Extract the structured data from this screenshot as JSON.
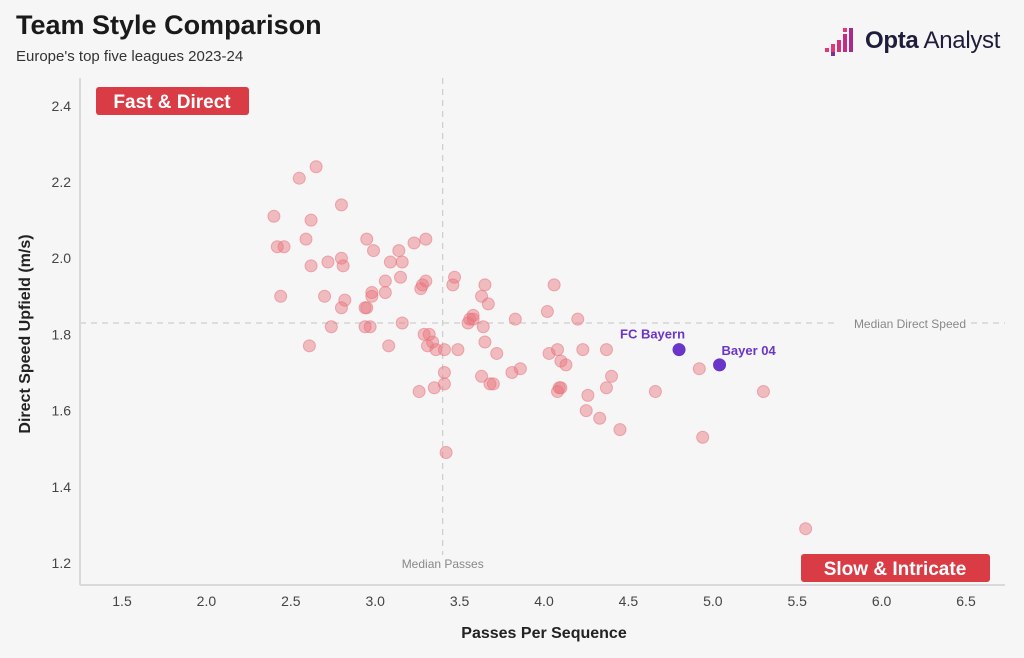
{
  "header": {
    "title": "Team Style Comparison",
    "subtitle": "Europe's top five leagues 2023-24"
  },
  "logo": {
    "icon": "opta-analyst-logo-icon",
    "brand": "Opta",
    "product": "Analyst"
  },
  "colors": {
    "points": "#e8737c",
    "highlight": "#6a35c9",
    "quadrant_badge": "#d93c45",
    "axis": "#d9d9d9",
    "median_line": "#c4c4c4",
    "text": "#222222"
  },
  "chart_data": {
    "type": "scatter",
    "title": "Team Style Comparison",
    "subtitle": "Europe's top five leagues 2023-24",
    "xlabel": "Passes Per Sequence",
    "ylabel": "Direct Speed Upfield (m/s)",
    "xlim": [
      1.3,
      6.6
    ],
    "ylim": [
      1.15,
      2.45
    ],
    "xticks": [
      1.5,
      2.0,
      2.5,
      3.0,
      3.5,
      4.0,
      4.5,
      5.0,
      5.5,
      6.0,
      6.5
    ],
    "yticks": [
      1.2,
      1.4,
      1.6,
      1.8,
      2.0,
      2.2,
      2.4
    ],
    "grid": false,
    "median_passes": 3.4,
    "median_speed": 1.83,
    "median_passes_label": "Median Passes",
    "median_speed_label": "Median Direct Speed",
    "quadrant_labels": {
      "top_left": "Fast & Direct",
      "bottom_right": "Slow & Intricate"
    },
    "highlighted": [
      {
        "label": "FC Bayern",
        "x": 4.8,
        "y": 1.76
      },
      {
        "label": "Bayer 04",
        "x": 5.04,
        "y": 1.72
      }
    ],
    "points": [
      [
        2.4,
        2.11
      ],
      [
        2.55,
        2.21
      ],
      [
        2.65,
        2.24
      ],
      [
        2.62,
        2.1
      ],
      [
        2.42,
        2.03
      ],
      [
        2.46,
        2.03
      ],
      [
        2.59,
        2.05
      ],
      [
        2.62,
        1.98
      ],
      [
        2.44,
        1.9
      ],
      [
        2.61,
        1.77
      ],
      [
        2.7,
        1.9
      ],
      [
        2.72,
        1.99
      ],
      [
        2.74,
        1.82
      ],
      [
        2.8,
        2.14
      ],
      [
        2.8,
        2.0
      ],
      [
        2.81,
        1.98
      ],
      [
        2.82,
        1.89
      ],
      [
        2.8,
        1.87
      ],
      [
        2.94,
        1.87
      ],
      [
        2.95,
        1.87
      ],
      [
        2.95,
        2.05
      ],
      [
        2.99,
        2.02
      ],
      [
        2.94,
        1.82
      ],
      [
        2.97,
        1.82
      ],
      [
        2.98,
        1.9
      ],
      [
        2.98,
        1.91
      ],
      [
        3.06,
        1.94
      ],
      [
        3.06,
        1.91
      ],
      [
        3.09,
        1.99
      ],
      [
        3.08,
        1.77
      ],
      [
        3.14,
        2.02
      ],
      [
        3.15,
        1.95
      ],
      [
        3.16,
        1.99
      ],
      [
        3.16,
        1.83
      ],
      [
        3.23,
        2.04
      ],
      [
        3.3,
        2.05
      ],
      [
        3.27,
        1.92
      ],
      [
        3.28,
        1.93
      ],
      [
        3.3,
        1.94
      ],
      [
        3.29,
        1.8
      ],
      [
        3.31,
        1.77
      ],
      [
        3.32,
        1.8
      ],
      [
        3.34,
        1.78
      ],
      [
        3.36,
        1.76
      ],
      [
        3.35,
        1.66
      ],
      [
        3.41,
        1.76
      ],
      [
        3.41,
        1.7
      ],
      [
        3.41,
        1.67
      ],
      [
        3.26,
        1.65
      ],
      [
        3.42,
        1.49
      ],
      [
        3.47,
        1.95
      ],
      [
        3.46,
        1.93
      ],
      [
        3.49,
        1.76
      ],
      [
        3.55,
        1.83
      ],
      [
        3.56,
        1.84
      ],
      [
        3.58,
        1.85
      ],
      [
        3.58,
        1.84
      ],
      [
        3.63,
        1.9
      ],
      [
        3.65,
        1.93
      ],
      [
        3.67,
        1.88
      ],
      [
        3.64,
        1.82
      ],
      [
        3.65,
        1.78
      ],
      [
        3.63,
        1.69
      ],
      [
        3.68,
        1.67
      ],
      [
        3.7,
        1.67
      ],
      [
        3.72,
        1.75
      ],
      [
        3.81,
        1.7
      ],
      [
        3.83,
        1.84
      ],
      [
        3.86,
        1.71
      ],
      [
        4.02,
        1.86
      ],
      [
        4.06,
        1.93
      ],
      [
        4.03,
        1.75
      ],
      [
        4.08,
        1.76
      ],
      [
        4.1,
        1.73
      ],
      [
        4.13,
        1.72
      ],
      [
        4.09,
        1.66
      ],
      [
        4.1,
        1.66
      ],
      [
        4.08,
        1.65
      ],
      [
        4.2,
        1.84
      ],
      [
        4.23,
        1.76
      ],
      [
        4.26,
        1.64
      ],
      [
        4.25,
        1.6
      ],
      [
        4.33,
        1.58
      ],
      [
        4.37,
        1.76
      ],
      [
        4.37,
        1.66
      ],
      [
        4.4,
        1.69
      ],
      [
        4.45,
        1.55
      ],
      [
        4.66,
        1.65
      ],
      [
        4.92,
        1.71
      ],
      [
        4.94,
        1.53
      ],
      [
        5.3,
        1.65
      ],
      [
        5.55,
        1.29
      ]
    ]
  }
}
